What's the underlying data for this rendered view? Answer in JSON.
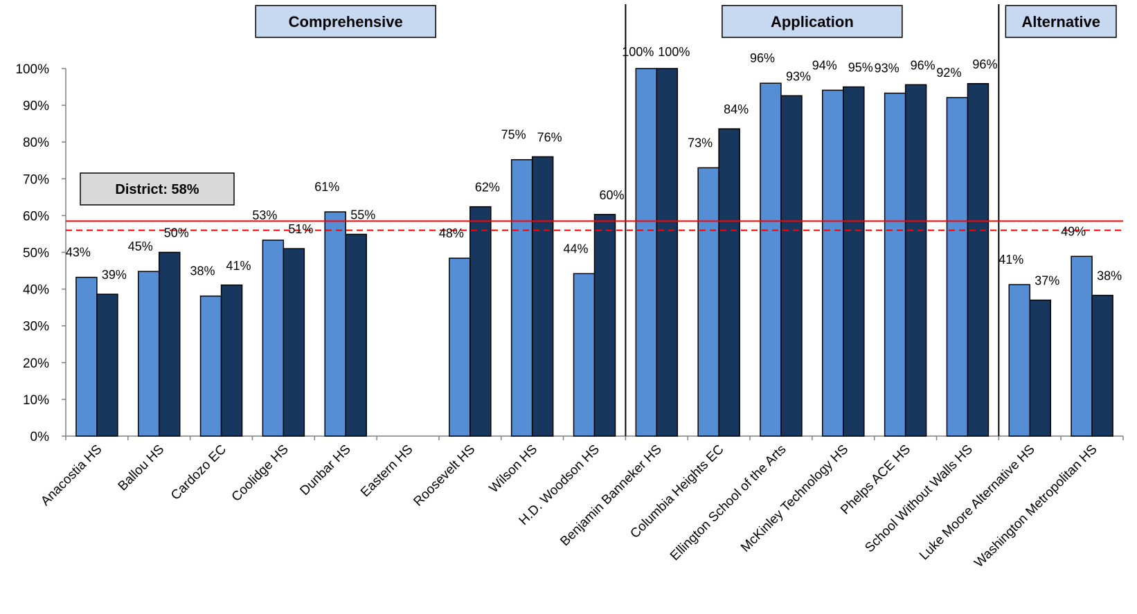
{
  "chart_data": {
    "type": "bar",
    "title": "",
    "xlabel": "",
    "ylabel": "",
    "ylim": [
      0,
      100
    ],
    "yticks": [
      "0%",
      "10%",
      "20%",
      "30%",
      "40%",
      "50%",
      "60%",
      "70%",
      "80%",
      "90%",
      "100%"
    ],
    "grid": false,
    "legend": "none",
    "categories": [
      "Anacostia HS",
      "Ballou HS",
      "Cardozo EC",
      "Coolidge HS",
      "Dunbar HS",
      "Eastern HS",
      "Roosevelt HS",
      "Wilson HS",
      "H.D. Woodson HS",
      "Benjamin Banneker HS",
      "Columbia Heights EC",
      "Ellington School of the Arts",
      "McKinley Technology HS",
      "Phelps ACE HS",
      "School Without Walls HS",
      "Luke Moore Alternative HS",
      "Washington Metropolitan HS"
    ],
    "series": [
      {
        "color": "#558ED5",
        "values": [
          43.2,
          44.8,
          38.1,
          53.3,
          61.0,
          null,
          48.4,
          75.2,
          44.2,
          100,
          73.0,
          96.0,
          94.1,
          93.3,
          92.1,
          41.2,
          48.9
        ],
        "labels": [
          "43%",
          "45%",
          "38%",
          "53%",
          "61%",
          "",
          "48%",
          "75%",
          "44%",
          "100%",
          "73%",
          "96%",
          "94%",
          "93%",
          "92%",
          "41%",
          "49%"
        ]
      },
      {
        "color": "#17375E",
        "values": [
          38.6,
          50.0,
          41.1,
          51.0,
          54.9,
          null,
          62.4,
          76.0,
          60.3,
          100,
          83.6,
          92.6,
          95.0,
          95.6,
          95.9,
          37.0,
          38.3
        ],
        "labels": [
          "39%",
          "50%",
          "41%",
          "51%",
          "55%",
          "",
          "62%",
          "76%",
          "60%",
          "100%",
          "84%",
          "93%",
          "95%",
          "96%",
          "96%",
          "37%",
          "38%"
        ]
      }
    ],
    "groups": [
      {
        "label": "Comprehensive",
        "start": 0,
        "end": 8
      },
      {
        "label": "Application",
        "start": 9,
        "end": 14
      },
      {
        "label": "Alternative",
        "start": 15,
        "end": 16
      }
    ],
    "reference_lines": [
      {
        "value": 58.5,
        "style": "solid",
        "color": "#FF0000"
      },
      {
        "value": 56.0,
        "style": "dashed",
        "color": "#FF0000"
      }
    ],
    "district_label": "District: 58%",
    "colors": {
      "group_box_fill": "#C6D9F1",
      "district_box_fill": "#D9D9D9"
    }
  }
}
